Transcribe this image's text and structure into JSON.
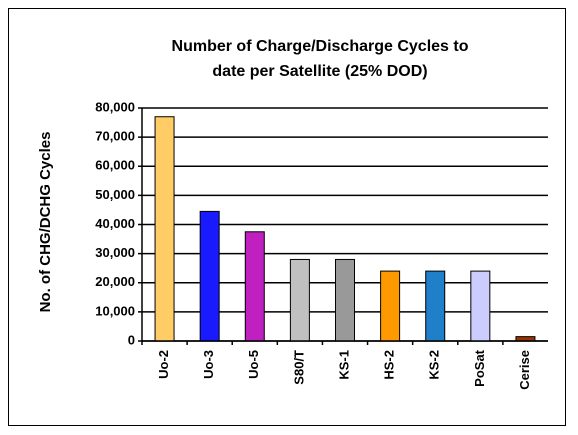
{
  "chart_data": {
    "type": "bar",
    "title": [
      "Number of Charge/Discharge Cycles to",
      "date per Satellite (25% DOD)"
    ],
    "ylabel": "No. of CHG/DCHG Cycles",
    "categories": [
      "Uo-2",
      "Uo-3",
      "Uo-5",
      "S80/T",
      "KS-1",
      "HS-2",
      "KS-2",
      "PoSat",
      "Cerise"
    ],
    "values": [
      77000,
      44500,
      37500,
      28000,
      28000,
      24000,
      24000,
      24000,
      1500
    ],
    "colors": [
      "#ffcc66",
      "#1a1aff",
      "#c020c0",
      "#c0c0c0",
      "#999999",
      "#ff9900",
      "#1f7fc8",
      "#ccccff",
      "#993300"
    ],
    "ylim": [
      0,
      80000
    ],
    "yticks": [
      0,
      {
        "value": 10000,
        "label": "10,000"
      },
      {
        "value": 20000,
        "label": "20,000"
      },
      {
        "value": 30000,
        "label": "30,000"
      },
      {
        "value": 40000,
        "label": "40,000"
      },
      {
        "value": 50000,
        "label": "50,000"
      },
      {
        "value": 60000,
        "label": "60,000"
      },
      {
        "value": 70000,
        "label": "70,000"
      },
      {
        "value": 80000,
        "label": "80,000"
      }
    ],
    "grid": true
  }
}
